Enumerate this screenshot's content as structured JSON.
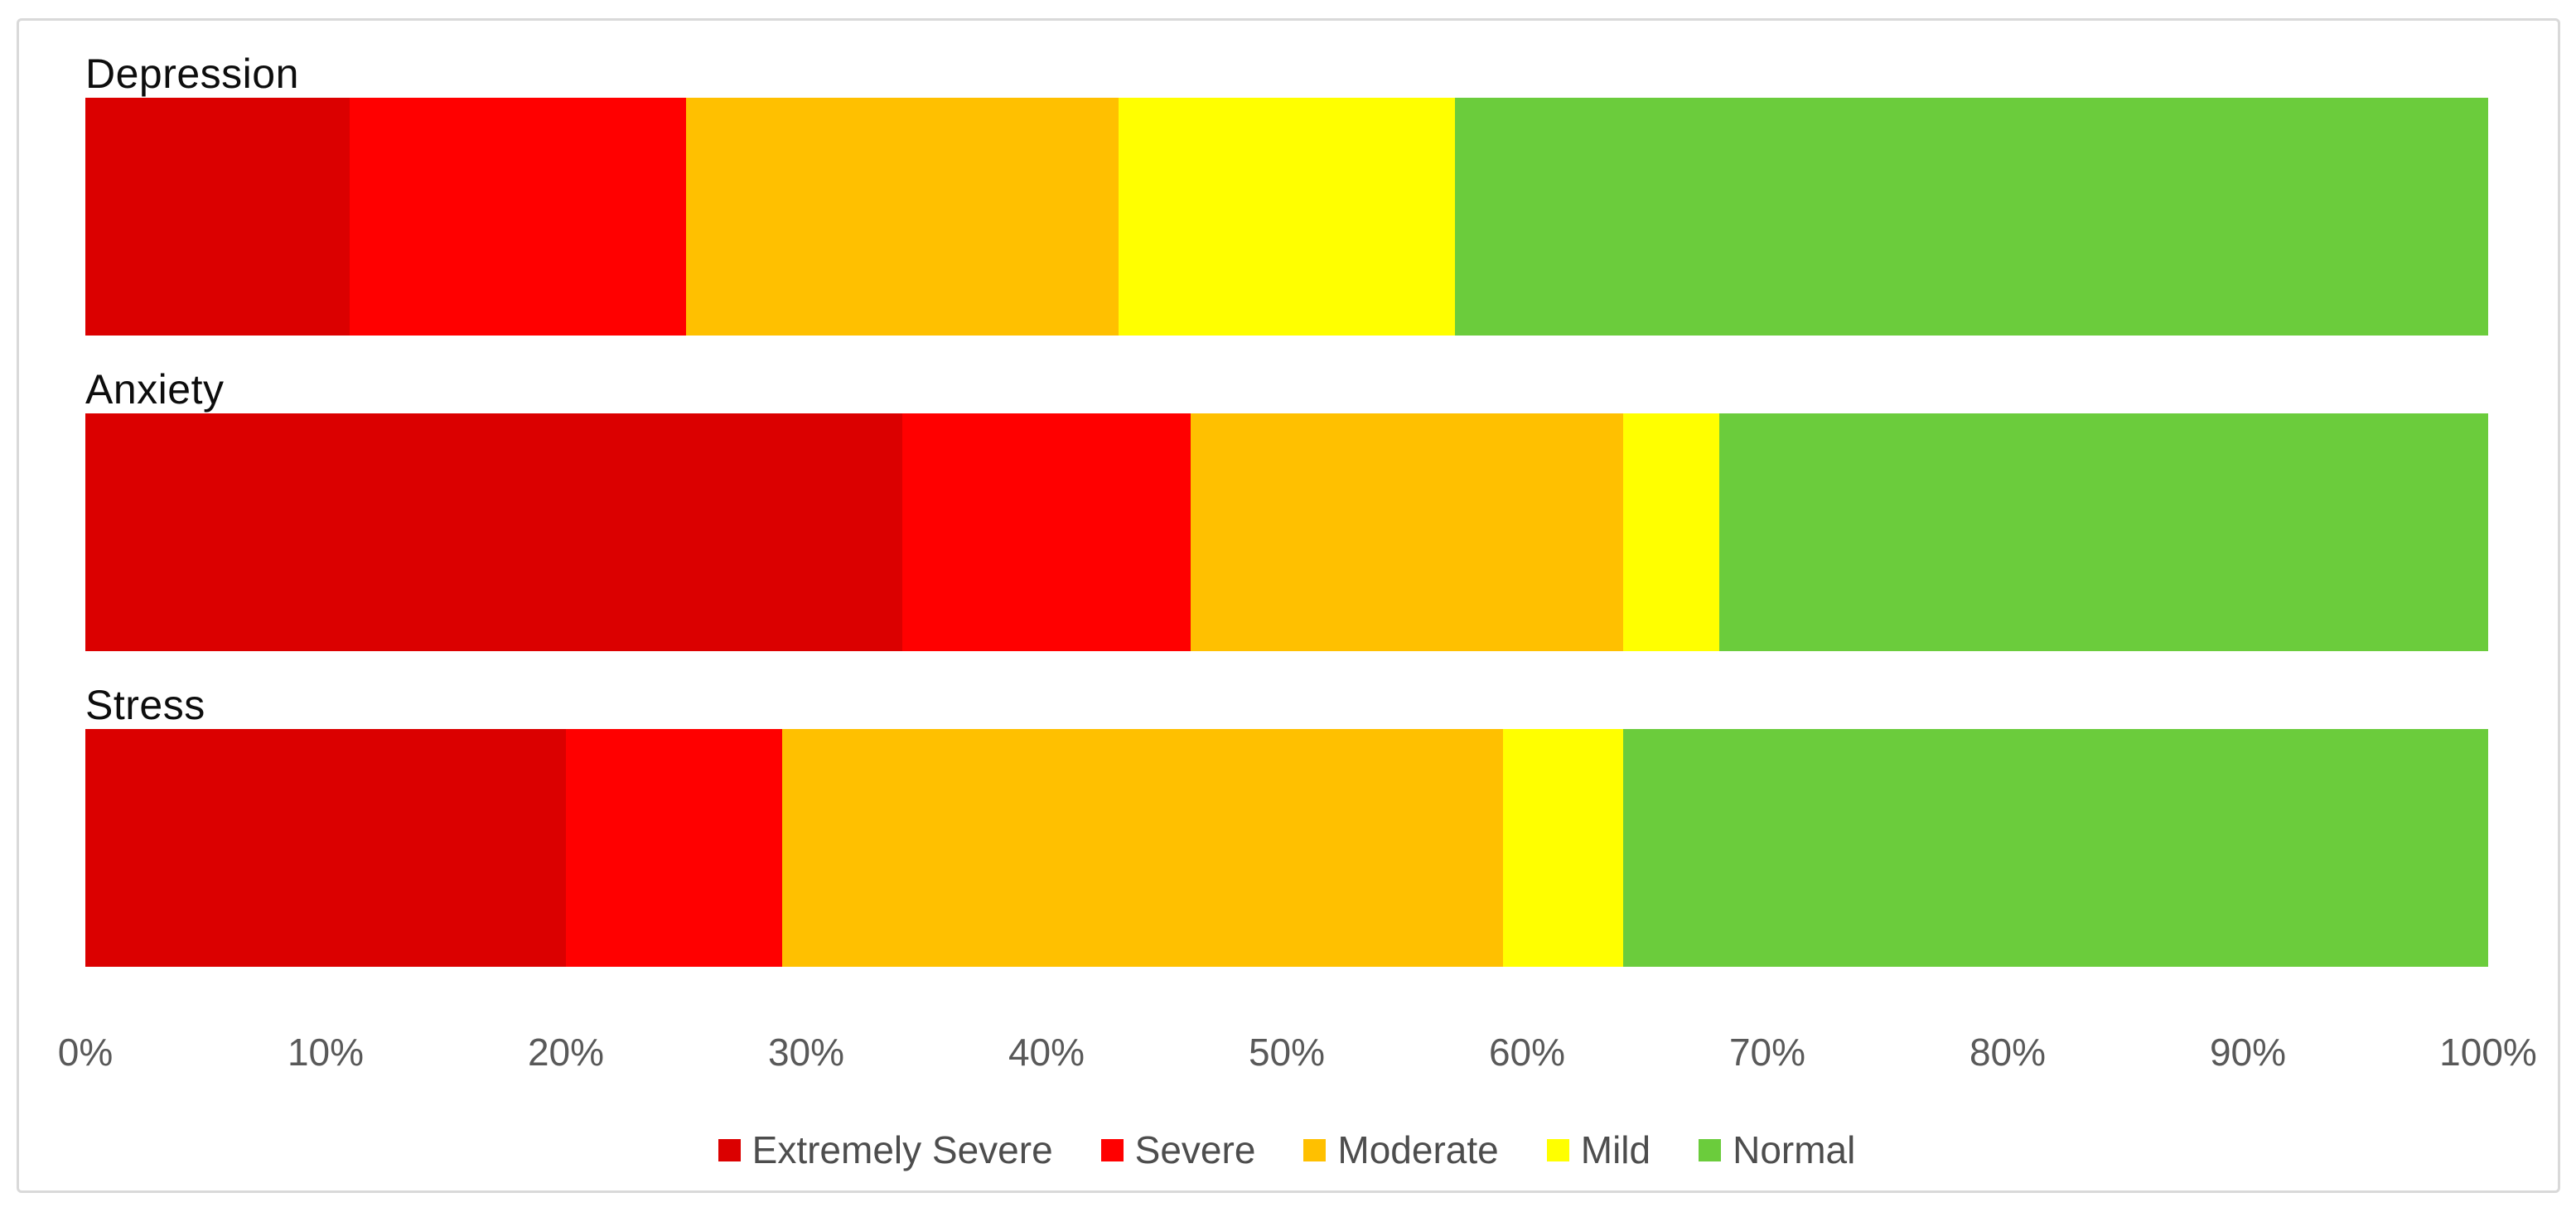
{
  "chart_data": {
    "type": "bar",
    "variant": "horizontal-stacked-100",
    "title": "",
    "categories": [
      "Depression",
      "Anxiety",
      "Stress"
    ],
    "series": [
      {
        "name": "Extremely Severe",
        "color": "#db0000",
        "values": [
          11,
          34,
          20
        ]
      },
      {
        "name": "Severe",
        "color": "#ff0000",
        "values": [
          14,
          12,
          9
        ]
      },
      {
        "name": "Moderate",
        "color": "#ffc000",
        "values": [
          18,
          18,
          30
        ]
      },
      {
        "name": "Mild",
        "color": "#ffff00",
        "values": [
          14,
          4,
          5
        ]
      },
      {
        "name": "Normal",
        "color": "#6bcc3c",
        "values": [
          43,
          32,
          36
        ]
      }
    ],
    "x_axis": {
      "min": 0,
      "max": 100,
      "tick_labels": [
        "0%",
        "10%",
        "20%",
        "30%",
        "40%",
        "50%",
        "60%",
        "70%",
        "80%",
        "90%",
        "100%"
      ]
    },
    "y_axis": {
      "label": ""
    },
    "legend_position": "bottom",
    "grid": false,
    "category_label_color": "#0d0d0d",
    "axis_label_color": "#595959",
    "frame_border_color": "#d9d9d9"
  }
}
